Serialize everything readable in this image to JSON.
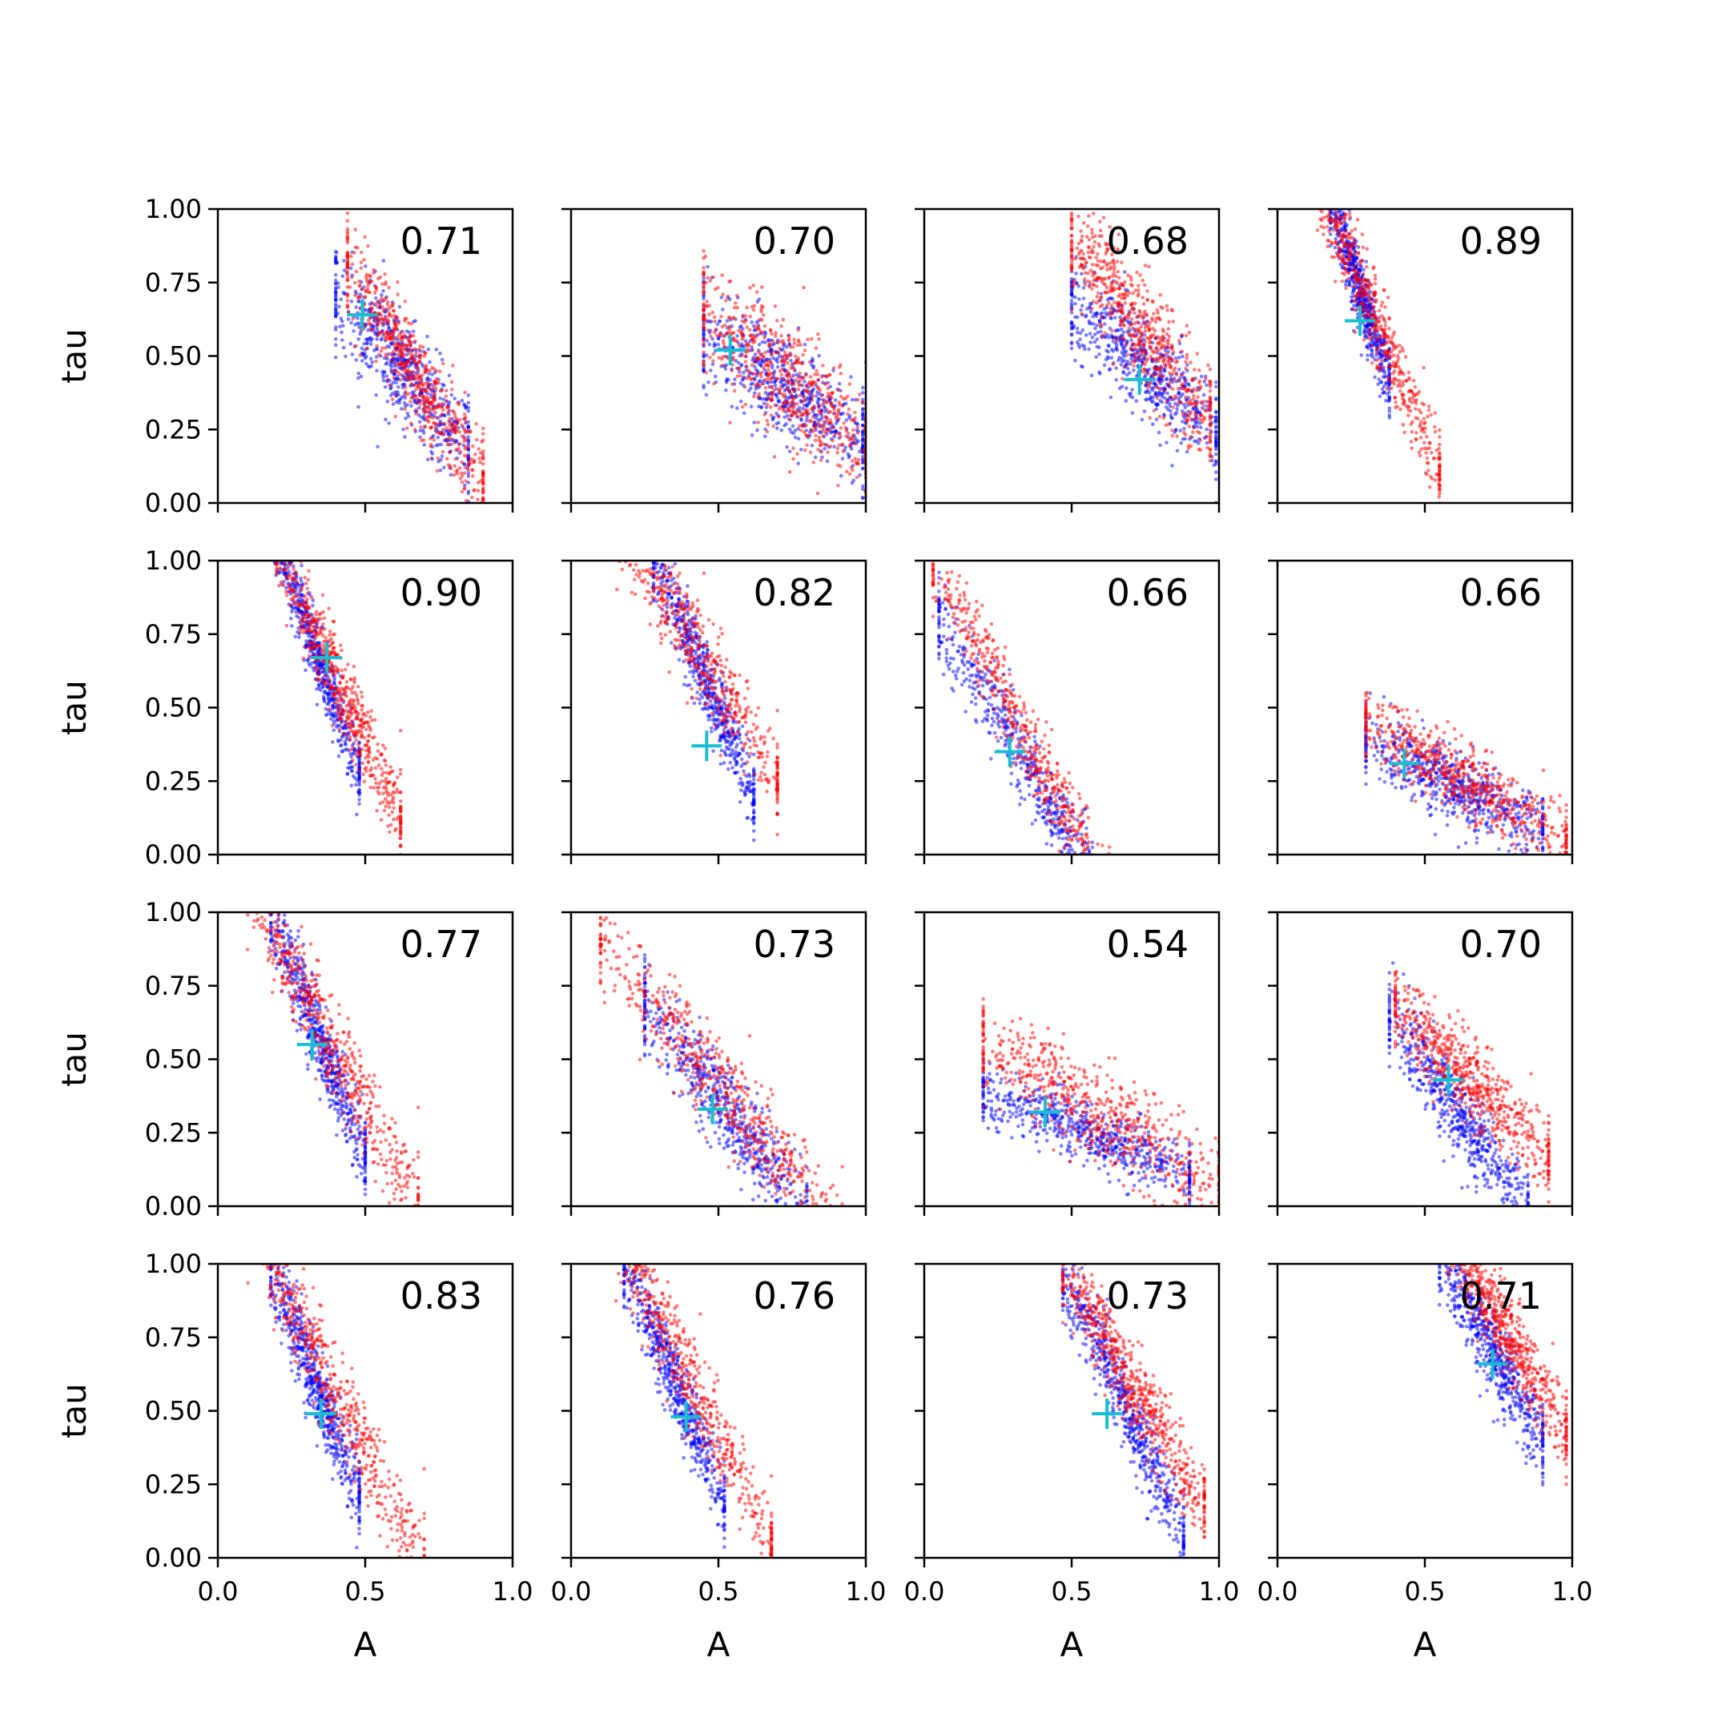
{
  "chart_data": {
    "type": "scatter",
    "layout": "4x4 grid, shared axes",
    "xlabel": "A",
    "ylabel": "tau",
    "xlim": [
      0.0,
      1.0
    ],
    "ylim": [
      0.0,
      1.0
    ],
    "x_ticks": [
      "0.0",
      "0.5",
      "1.0"
    ],
    "y_ticks": [
      "0.00",
      "0.25",
      "0.50",
      "0.75",
      "1.00"
    ],
    "series_colors": {
      "blue_points": "#0000ff",
      "red_points": "#ff0000",
      "marker": "#17becf"
    },
    "panels": [
      {
        "label": "0.71",
        "marker": [
          0.49,
          0.64
        ],
        "blue": {
          "center": [
            0.62,
            0.46
          ],
          "slope": -1.2,
          "spread": 0.09,
          "range": [
            0.4,
            0.85
          ]
        },
        "red": {
          "center": [
            0.6,
            0.55
          ],
          "slope": -1.6,
          "spread": 0.08,
          "range": [
            0.44,
            0.9
          ]
        }
      },
      {
        "label": "0.70",
        "marker": [
          0.54,
          0.52
        ],
        "blue": {
          "center": [
            0.72,
            0.4
          ],
          "slope": -0.7,
          "spread": 0.09,
          "range": [
            0.45,
            0.99
          ]
        },
        "red": {
          "center": [
            0.72,
            0.43
          ],
          "slope": -0.8,
          "spread": 0.1,
          "range": [
            0.45,
            1.0
          ]
        }
      },
      {
        "label": "0.68",
        "marker": [
          0.73,
          0.42
        ],
        "blue": {
          "center": [
            0.76,
            0.45
          ],
          "slope": -0.9,
          "spread": 0.08,
          "range": [
            0.5,
            0.99
          ]
        },
        "red": {
          "center": [
            0.73,
            0.6
          ],
          "slope": -1.3,
          "spread": 0.09,
          "range": [
            0.5,
            0.97
          ]
        }
      },
      {
        "label": "0.89",
        "marker": [
          0.28,
          0.62
        ],
        "blue": {
          "center": [
            0.28,
            0.72
          ],
          "slope": -3.0,
          "spread": 0.06,
          "range": [
            0.18,
            0.38
          ]
        },
        "red": {
          "center": [
            0.3,
            0.7
          ],
          "slope": -2.4,
          "spread": 0.07,
          "range": [
            0.08,
            0.55
          ]
        }
      },
      {
        "label": "0.90",
        "marker": [
          0.37,
          0.67
        ],
        "blue": {
          "center": [
            0.33,
            0.7
          ],
          "slope": -2.8,
          "spread": 0.06,
          "range": [
            0.18,
            0.48
          ]
        },
        "red": {
          "center": [
            0.38,
            0.65
          ],
          "slope": -2.2,
          "spread": 0.07,
          "range": [
            0.2,
            0.62
          ]
        }
      },
      {
        "label": "0.82",
        "marker": [
          0.46,
          0.37
        ],
        "blue": {
          "center": [
            0.42,
            0.68
          ],
          "slope": -2.4,
          "spread": 0.07,
          "range": [
            0.28,
            0.62
          ]
        },
        "red": {
          "center": [
            0.42,
            0.72
          ],
          "slope": -1.6,
          "spread": 0.08,
          "range": [
            0.05,
            0.7
          ]
        }
      },
      {
        "label": "0.66",
        "marker": [
          0.29,
          0.35
        ],
        "blue": {
          "center": [
            0.3,
            0.38
          ],
          "slope": -1.7,
          "spread": 0.07,
          "range": [
            0.05,
            0.7
          ]
        },
        "red": {
          "center": [
            0.25,
            0.58
          ],
          "slope": -1.9,
          "spread": 0.07,
          "range": [
            0.03,
            0.75
          ]
        }
      },
      {
        "label": "0.66",
        "marker": [
          0.43,
          0.31
        ],
        "blue": {
          "center": [
            0.55,
            0.26
          ],
          "slope": -0.5,
          "spread": 0.06,
          "range": [
            0.3,
            0.9
          ]
        },
        "red": {
          "center": [
            0.6,
            0.27
          ],
          "slope": -0.6,
          "spread": 0.06,
          "range": [
            0.3,
            0.98
          ]
        }
      },
      {
        "label": "0.77",
        "marker": [
          0.32,
          0.55
        ],
        "blue": {
          "center": [
            0.31,
            0.66
          ],
          "slope": -2.6,
          "spread": 0.07,
          "range": [
            0.18,
            0.5
          ]
        },
        "red": {
          "center": [
            0.35,
            0.62
          ],
          "slope": -1.9,
          "spread": 0.08,
          "range": [
            0.05,
            0.68
          ]
        }
      },
      {
        "label": "0.73",
        "marker": [
          0.48,
          0.33
        ],
        "blue": {
          "center": [
            0.47,
            0.4
          ],
          "slope": -1.3,
          "spread": 0.08,
          "range": [
            0.25,
            0.8
          ]
        },
        "red": {
          "center": [
            0.5,
            0.42
          ],
          "slope": -1.2,
          "spread": 0.08,
          "range": [
            0.1,
            0.92
          ]
        }
      },
      {
        "label": "0.54",
        "marker": [
          0.41,
          0.32
        ],
        "blue": {
          "center": [
            0.55,
            0.25
          ],
          "slope": -0.4,
          "spread": 0.05,
          "range": [
            0.2,
            0.9
          ]
        },
        "red": {
          "center": [
            0.62,
            0.3
          ],
          "slope": -0.6,
          "spread": 0.08,
          "range": [
            0.2,
            1.0
          ]
        }
      },
      {
        "label": "0.70",
        "marker": [
          0.58,
          0.43
        ],
        "blue": {
          "center": [
            0.54,
            0.42
          ],
          "slope": -1.4,
          "spread": 0.07,
          "range": [
            0.38,
            0.85
          ]
        },
        "red": {
          "center": [
            0.66,
            0.42
          ],
          "slope": -1.0,
          "spread": 0.07,
          "range": [
            0.4,
            0.92
          ]
        }
      },
      {
        "label": "0.83",
        "marker": [
          0.35,
          0.49
        ],
        "blue": {
          "center": [
            0.31,
            0.65
          ],
          "slope": -2.6,
          "spread": 0.07,
          "range": [
            0.18,
            0.48
          ]
        },
        "red": {
          "center": [
            0.38,
            0.6
          ],
          "slope": -2.0,
          "spread": 0.08,
          "range": [
            0.05,
            0.7
          ]
        }
      },
      {
        "label": "0.76",
        "marker": [
          0.39,
          0.48
        ],
        "blue": {
          "center": [
            0.34,
            0.62
          ],
          "slope": -2.4,
          "spread": 0.07,
          "range": [
            0.18,
            0.52
          ]
        },
        "red": {
          "center": [
            0.4,
            0.62
          ],
          "slope": -2.0,
          "spread": 0.08,
          "range": [
            0.05,
            0.68
          ]
        }
      },
      {
        "label": "0.73",
        "marker": [
          0.62,
          0.49
        ],
        "blue": {
          "center": [
            0.62,
            0.65
          ],
          "slope": -2.2,
          "spread": 0.07,
          "range": [
            0.47,
            0.88
          ]
        },
        "red": {
          "center": [
            0.68,
            0.63
          ],
          "slope": -1.7,
          "spread": 0.07,
          "range": [
            0.47,
            0.95
          ]
        }
      },
      {
        "label": "0.71",
        "marker": [
          0.73,
          0.66
        ],
        "blue": {
          "center": [
            0.7,
            0.76
          ],
          "slope": -1.8,
          "spread": 0.07,
          "range": [
            0.55,
            0.9
          ]
        },
        "red": {
          "center": [
            0.78,
            0.76
          ],
          "slope": -1.7,
          "spread": 0.07,
          "range": [
            0.58,
            0.98
          ]
        }
      }
    ]
  }
}
